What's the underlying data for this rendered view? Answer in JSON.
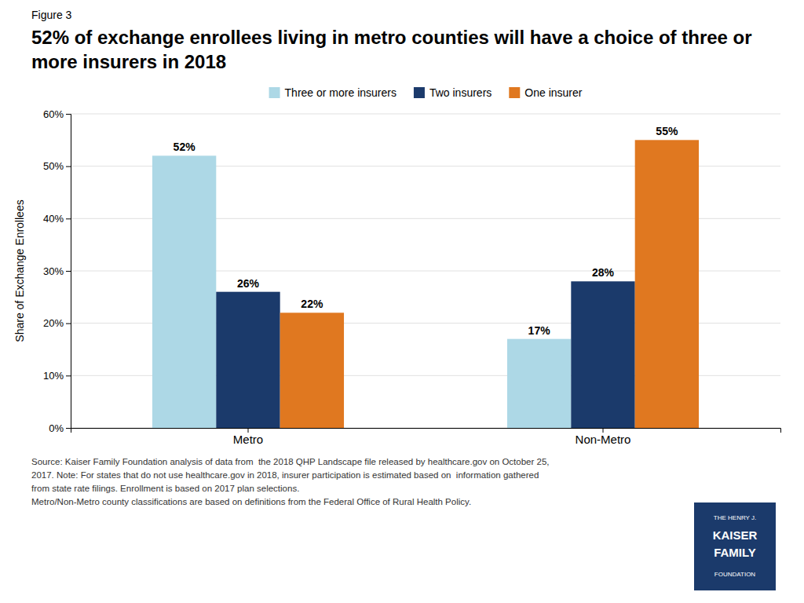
{
  "chart_data": {
    "type": "bar",
    "title": "52% of exchange enrollees living in metro counties will have a choice of three or more insurers in 2018",
    "annotations": [
      "Figure 3",
      "Source: Kaiser Family Foundation analysis of data from  the 2018 QHP Landscape file released by healthcare.gov on October 25,",
      "2017. Note: For states that do not use healthcare.gov in 2018, insurer participation is estimated based on  information gathered",
      "from state rate filings. Enrollment is based on 2017 plan selections.",
      "Metro/Non-Metro county classifications are based on definitions from the Federal Office of Rural Health Policy.",
      "THE HENRY J.",
      "KAISER",
      "FAMILY",
      "FOUNDATION"
    ],
    "categories": [
      "Metro",
      "Non-Metro"
    ],
    "series": [
      {
        "name": "Three or more insurers",
        "color": "#ADD8E6",
        "values": [
          52,
          17
        ],
        "value_labels": [
          "52%",
          "17%"
        ]
      },
      {
        "name": "Two insurers",
        "color": "#1B3A6B",
        "values": [
          26,
          28
        ],
        "value_labels": [
          "26%",
          "28%"
        ]
      },
      {
        "name": "One insurer",
        "color": "#E07820",
        "values": [
          22,
          55
        ],
        "value_labels": [
          "22%",
          "55%"
        ]
      }
    ],
    "ylabel": "Share of Exchange Enrollees",
    "ylim": [
      0,
      60
    ],
    "yticks": [
      {
        "value": 0,
        "label": "0%"
      },
      {
        "value": 10,
        "label": "10%"
      },
      {
        "value": 20,
        "label": "20%"
      },
      {
        "value": 30,
        "label": "30%"
      },
      {
        "value": 40,
        "label": "40%"
      },
      {
        "value": 50,
        "label": "50%"
      },
      {
        "value": 60,
        "label": "60%"
      }
    ],
    "grid": true,
    "legend": "top",
    "data_labels": true
  }
}
